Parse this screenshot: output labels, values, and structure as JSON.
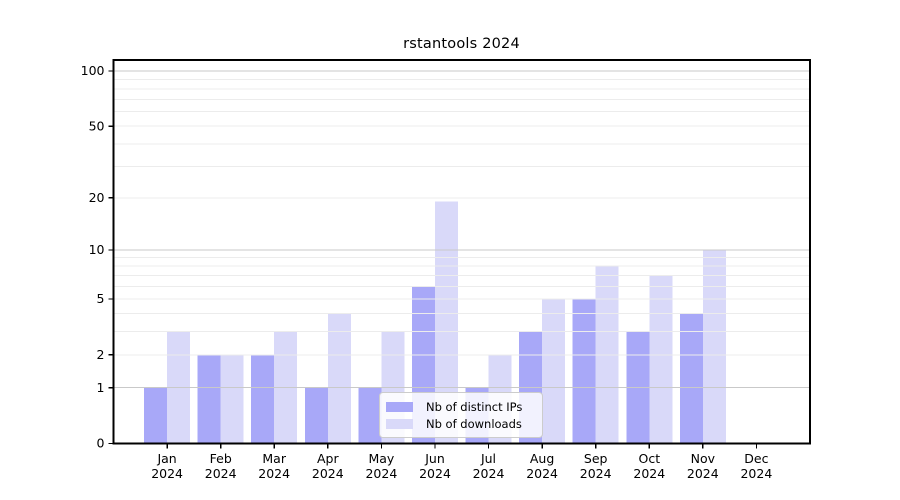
{
  "chart_data": {
    "type": "bar",
    "title": "rstantools 2024",
    "year": "2024",
    "categories": [
      "Jan",
      "Feb",
      "Mar",
      "Apr",
      "May",
      "Jun",
      "Jul",
      "Aug",
      "Sep",
      "Oct",
      "Nov",
      "Dec"
    ],
    "series": [
      {
        "name": "Nb of distinct IPs",
        "color": "#a8a8f8",
        "values": [
          1,
          2,
          2,
          1,
          1,
          6,
          1,
          3,
          5,
          3,
          4,
          0
        ]
      },
      {
        "name": "Nb of downloads",
        "color": "#d9d9f9",
        "values": [
          3,
          2,
          3,
          4,
          3,
          19,
          2,
          5,
          8,
          7,
          10,
          0
        ]
      }
    ],
    "yscale": "log1p",
    "ylim": [
      0,
      115
    ],
    "ytick_labels": [
      "0",
      "1",
      "2",
      "5",
      "10",
      "20",
      "50",
      "100"
    ],
    "ytick_values": [
      0,
      1,
      2,
      5,
      10,
      20,
      50,
      100
    ],
    "grid_major_values": [
      1,
      10,
      100
    ],
    "grid_minor_values": [
      2,
      3,
      4,
      5,
      6,
      7,
      8,
      9,
      20,
      30,
      40,
      50,
      60,
      70,
      80,
      90
    ],
    "legend_position": "lower center",
    "grid": "on",
    "style": {
      "grid_major_color": "#c9c9c9",
      "grid_minor_color": "#ececec",
      "spine_color": "#000000",
      "text_color": "#000000",
      "background_color": "#ffffff"
    }
  }
}
